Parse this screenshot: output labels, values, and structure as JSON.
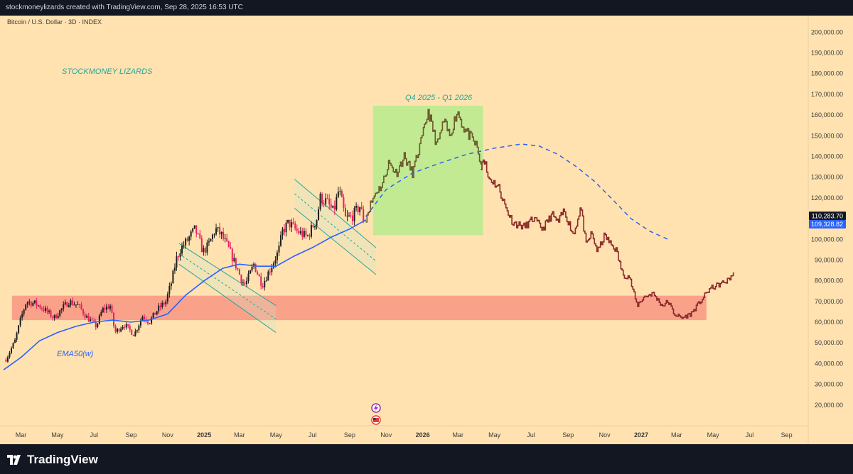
{
  "header": {
    "credit": "stockmoneylizards created with TradingView.com, Sep 28, 2025 16:53 UTC"
  },
  "symbol": {
    "title": "Bitcoin / U.S. Dollar · 3D · INDEX"
  },
  "annotations": {
    "brand": "STOCKMONEY LIZARDS",
    "zone_label": "Q4 2025 - Q1 2026",
    "ema_label": "EMA50(w)"
  },
  "footer": {
    "logo_text": "TradingView"
  },
  "colors": {
    "background": "#ffe2b0",
    "chrome": "#131722",
    "ema": "#2962ff",
    "bull_candle": "#1e1e1e",
    "bear_candle": "#e91e63",
    "projection": "#8b2a2a",
    "projection_up": "#6b5a2a",
    "support_zone": "#f8867a",
    "target_zone": "#b6eb8e",
    "channel": "#26a69a",
    "annotation_text": "#26a69a",
    "price_label_last": "#131722",
    "price_label_ema": "#2962ff"
  },
  "chart_data": {
    "type": "line",
    "title": "Bitcoin / U.S. Dollar · 3D · INDEX",
    "ylim": [
      10000,
      208000
    ],
    "y_ticks": [
      "20,000.00",
      "30,000.00",
      "40,000.00",
      "50,000.00",
      "60,000.00",
      "70,000.00",
      "80,000.00",
      "90,000.00",
      "100,000.00",
      "110,000.00",
      "120,000.00",
      "130,000.00",
      "140,000.00",
      "150,000.00",
      "160,000.00",
      "170,000.00",
      "180,000.00",
      "190,000.00",
      "200,000.00"
    ],
    "x_ticks": [
      "Mar",
      "May",
      "Jul",
      "Sep",
      "Nov",
      "2025",
      "Mar",
      "May",
      "Jul",
      "Sep",
      "Nov",
      "2026",
      "Mar",
      "May",
      "Jul",
      "Sep",
      "Nov",
      "2027",
      "Mar",
      "May",
      "Jul",
      "Sep"
    ],
    "price_labels": {
      "last": "110,283.70",
      "ema": "109,328.82"
    },
    "grid": false,
    "series": [
      {
        "kind": "price",
        "x": [
          "2024-02-05",
          "2024-02-20",
          "2024-03-01",
          "2024-03-10",
          "2024-03-25",
          "2024-04-10",
          "2024-04-25",
          "2024-05-10",
          "2024-05-20",
          "2024-06-05",
          "2024-06-20",
          "2024-07-05",
          "2024-07-15",
          "2024-07-28",
          "2024-08-05",
          "2024-08-20",
          "2024-09-06",
          "2024-09-20",
          "2024-10-01",
          "2024-10-15",
          "2024-10-29",
          "2024-11-08",
          "2024-11-15",
          "2024-11-22",
          "2024-12-05",
          "2024-12-17",
          "2024-12-30",
          "2025-01-08",
          "2025-01-20",
          "2025-01-30",
          "2025-02-10",
          "2025-02-25",
          "2025-03-05",
          "2025-03-11",
          "2025-03-25",
          "2025-04-08",
          "2025-04-20",
          "2025-05-05",
          "2025-05-12",
          "2025-05-22",
          "2025-06-05",
          "2025-06-22",
          "2025-07-08",
          "2025-07-14",
          "2025-07-25",
          "2025-08-05",
          "2025-08-14",
          "2025-08-25",
          "2025-09-05",
          "2025-09-18",
          "2025-09-25",
          "2025-09-28"
        ],
        "y": [
          42000,
          51000,
          62000,
          70000,
          69000,
          66000,
          62000,
          67000,
          70000,
          68000,
          62000,
          58000,
          66000,
          68000,
          55000,
          59000,
          54000,
          63000,
          60000,
          66000,
          70000,
          80000,
          90000,
          95000,
          100000,
          105000,
          94000,
          97000,
          105000,
          102000,
          96000,
          86000,
          80000,
          78000,
          88000,
          78000,
          85000,
          94000,
          104000,
          108000,
          104000,
          101000,
          110000,
          120000,
          118000,
          113000,
          124000,
          110000,
          111000,
          116000,
          109000,
          110283.7
        ]
      },
      {
        "kind": "ema",
        "name": "EMA50(w)",
        "x": [
          "2024-02-01",
          "2024-03-01",
          "2024-04-01",
          "2024-05-01",
          "2024-06-01",
          "2024-07-01",
          "2024-08-01",
          "2024-09-01",
          "2024-10-01",
          "2024-11-01",
          "2024-12-01",
          "2025-01-01",
          "2025-02-01",
          "2025-03-01",
          "2025-04-01",
          "2025-05-01",
          "2025-06-01",
          "2025-07-01",
          "2025-08-01",
          "2025-09-01",
          "2025-09-28"
        ],
        "y": [
          37000,
          43000,
          51000,
          55000,
          58000,
          60000,
          61000,
          60000,
          61000,
          64000,
          73000,
          80000,
          86000,
          88000,
          87000,
          87000,
          92000,
          96000,
          101000,
          105000,
          109328.82
        ]
      },
      {
        "kind": "projection",
        "x": [
          "2025-09-28",
          "2025-10-06",
          "2025-10-15",
          "2025-10-25",
          "2025-11-05",
          "2025-11-18",
          "2025-12-01",
          "2025-12-15",
          "2026-01-01",
          "2026-01-10",
          "2026-01-25",
          "2026-02-05",
          "2026-02-15",
          "2026-02-28",
          "2026-03-10",
          "2026-03-20",
          "2026-04-01",
          "2026-04-08",
          "2026-04-13",
          "2026-04-20",
          "2026-04-28",
          "2026-05-08",
          "2026-05-20",
          "2026-06-01",
          "2026-06-20",
          "2026-07-05",
          "2026-07-20",
          "2026-08-05",
          "2026-08-15",
          "2026-08-25",
          "2026-09-10",
          "2026-09-22",
          "2026-10-01",
          "2026-10-10",
          "2026-10-20",
          "2026-11-01",
          "2026-11-10",
          "2026-11-20",
          "2026-12-01",
          "2026-12-12",
          "2026-12-25",
          "2027-01-05",
          "2027-01-20",
          "2027-02-05",
          "2027-02-15",
          "2027-02-25",
          "2027-03-10",
          "2027-03-25",
          "2027-04-10",
          "2027-04-25",
          "2027-05-10",
          "2027-05-25",
          "2027-06-05"
        ],
        "y": [
          110283.7,
          117000,
          123000,
          126000,
          137000,
          132000,
          140000,
          132000,
          150000,
          162000,
          145000,
          157000,
          150000,
          162000,
          154000,
          150000,
          145000,
          136000,
          140000,
          130000,
          128000,
          125000,
          115000,
          108000,
          106000,
          110000,
          105000,
          112000,
          108000,
          114000,
          102000,
          116000,
          97000,
          103000,
          94000,
          102000,
          98000,
          95000,
          83000,
          82000,
          68000,
          72000,
          74000,
          68000,
          70000,
          64000,
          62000,
          64000,
          70000,
          76000,
          78000,
          80000,
          84000
        ]
      },
      {
        "kind": "dashed_curve",
        "x": [
          "2025-09-28",
          "2025-11-01",
          "2025-12-15",
          "2026-02-01",
          "2026-03-15",
          "2026-05-01",
          "2026-06-15",
          "2026-07-15",
          "2026-08-15",
          "2026-09-15",
          "2026-10-15",
          "2026-11-15",
          "2026-12-15",
          "2027-01-15",
          "2027-02-15"
        ],
        "y": [
          111000,
          124000,
          132000,
          137000,
          141000,
          144000,
          146000,
          145000,
          141000,
          135000,
          128000,
          119000,
          110000,
          104000,
          100000
        ]
      }
    ],
    "zones": [
      {
        "name": "Q4 2025 - Q1 2026",
        "x": [
          "2025-10-10",
          "2026-04-12"
        ],
        "y": [
          102000,
          164500
        ]
      },
      {
        "name": "support",
        "x": [
          "2024-02-15",
          "2027-04-20"
        ],
        "y": [
          61000,
          72800
        ]
      }
    ],
    "channels": [
      {
        "x": [
          "2024-11-20",
          "2025-05-01"
        ],
        "upper": [
          98000,
          68000
        ],
        "lower": [
          88000,
          55000
        ]
      },
      {
        "x": [
          "2025-06-01",
          "2025-10-15"
        ],
        "upper": [
          129000,
          96000
        ],
        "lower": [
          115000,
          83000
        ]
      }
    ]
  }
}
